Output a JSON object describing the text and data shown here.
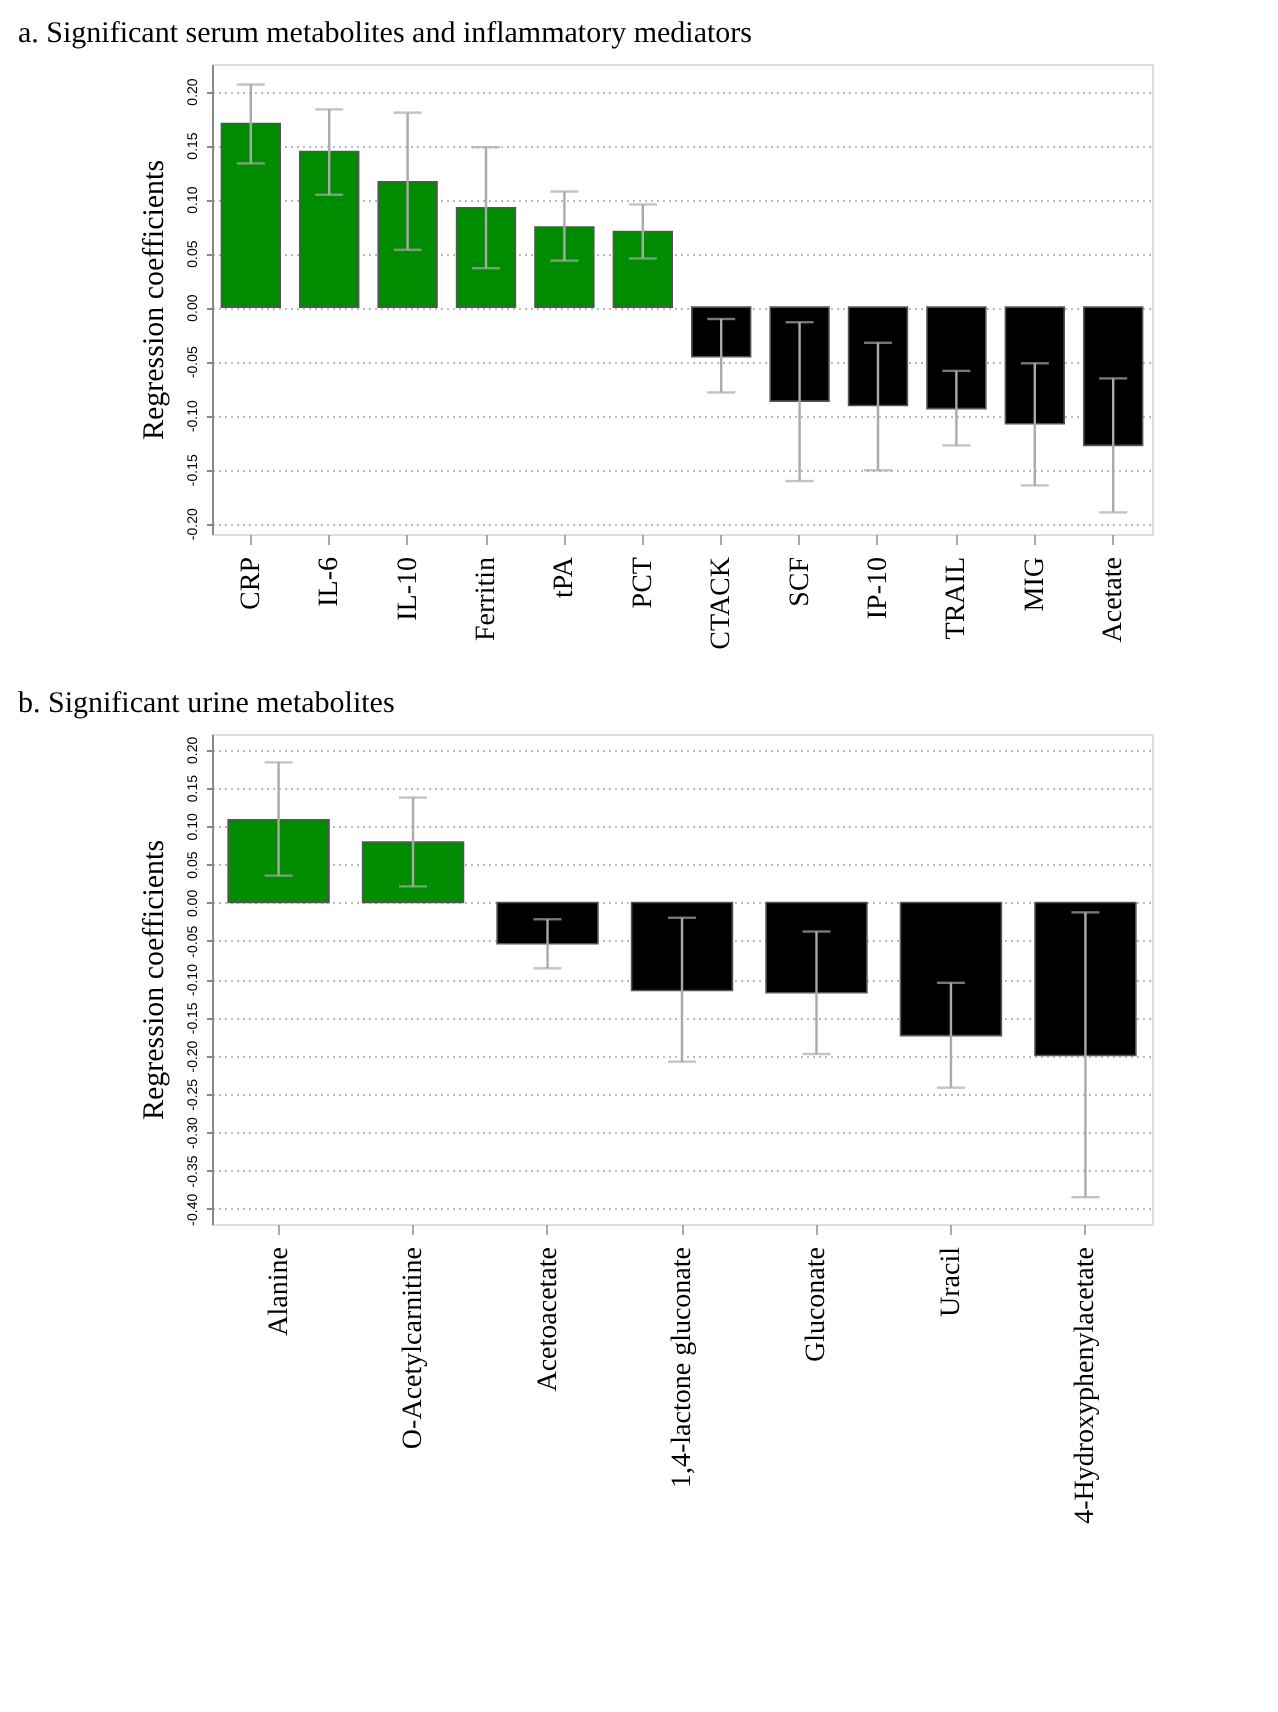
{
  "chart_data": [
    {
      "type": "bar",
      "title": "a. Significant serum metabolites and inflammatory mediators",
      "ylabel": "Regression coefficients",
      "categories": [
        "CRP",
        "IL-6",
        "IL-10",
        "Ferritin",
        "tPA",
        "PCT",
        "CTACK",
        "SCF",
        "IP-10",
        "TRAIL",
        "MIG",
        "Acetate"
      ],
      "values": [
        0.17,
        0.144,
        0.116,
        0.092,
        0.074,
        0.07,
        -0.046,
        -0.087,
        -0.091,
        -0.094,
        -0.108,
        -0.128
      ],
      "errors": [
        [
          0.133,
          0.206
        ],
        [
          0.104,
          0.183
        ],
        [
          0.053,
          0.18
        ],
        [
          0.036,
          0.148
        ],
        [
          0.043,
          0.107
        ],
        [
          0.045,
          0.095
        ],
        [
          -0.079,
          -0.011
        ],
        [
          -0.161,
          -0.014
        ],
        [
          -0.151,
          -0.033
        ],
        [
          -0.128,
          -0.059
        ],
        [
          -0.165,
          -0.052
        ],
        [
          -0.19,
          -0.066
        ]
      ],
      "colors": [
        "#008c00",
        "#008c00",
        "#008c00",
        "#008c00",
        "#008c00",
        "#008c00",
        "#000000",
        "#000000",
        "#000000",
        "#000000",
        "#000000",
        "#000000"
      ],
      "ylim": [
        -0.21,
        0.225
      ],
      "yticks": [
        {
          "value": 0.2,
          "label": "0.20"
        },
        {
          "value": 0.15,
          "label": "0.15"
        },
        {
          "value": 0.1,
          "label": "0.10"
        },
        {
          "value": 0.05,
          "label": "0.05"
        },
        {
          "value": 0,
          "label": "0.00"
        },
        {
          "value": -0.05,
          "label": "-0.05"
        },
        {
          "value": -0.1,
          "label": "-0.10"
        },
        {
          "value": -0.15,
          "label": "-0.15"
        },
        {
          "value": -0.2,
          "label": "-0.20"
        }
      ],
      "grid": "y",
      "legend": false
    },
    {
      "type": "bar",
      "title": "b. Significant urine metabolites",
      "ylabel": "Regression coefficients",
      "categories": [
        "Alanine",
        "O-Acetylcarnitine",
        "Acetoacetate",
        "1,4-lactone gluconate",
        "Gluconate",
        "Uracil",
        "4-Hydroxyphenylacetate"
      ],
      "values": [
        0.108,
        0.079,
        -0.054,
        -0.115,
        -0.118,
        -0.174,
        -0.2
      ],
      "errors": [
        [
          0.035,
          0.183
        ],
        [
          0.021,
          0.137
        ],
        [
          -0.086,
          -0.022
        ],
        [
          -0.208,
          -0.02
        ],
        [
          -0.198,
          -0.038
        ],
        [
          -0.242,
          -0.105
        ],
        [
          -0.385,
          -0.013
        ]
      ],
      "colors": [
        "#008c00",
        "#008c00",
        "#000000",
        "#000000",
        "#000000",
        "#000000",
        "#000000"
      ],
      "ylim": [
        -0.42,
        0.22
      ],
      "yticks": [
        {
          "value": 0.2,
          "label": "0.20"
        },
        {
          "value": 0.15,
          "label": "0.15"
        },
        {
          "value": 0.1,
          "label": "0.10"
        },
        {
          "value": 0.05,
          "label": "0.05"
        },
        {
          "value": 0,
          "label": "0.00"
        },
        {
          "value": -0.05,
          "label": "-0.05"
        },
        {
          "value": -0.1,
          "label": "-0.10"
        },
        {
          "value": -0.15,
          "label": "-0.15"
        },
        {
          "value": -0.2,
          "label": "-0.20"
        },
        {
          "value": -0.25,
          "label": "-0.25"
        },
        {
          "value": -0.3,
          "label": "-0.30"
        },
        {
          "value": -0.35,
          "label": "-0.35"
        },
        {
          "value": -0.4,
          "label": "-0.40"
        }
      ],
      "grid": "y",
      "legend": false
    }
  ]
}
